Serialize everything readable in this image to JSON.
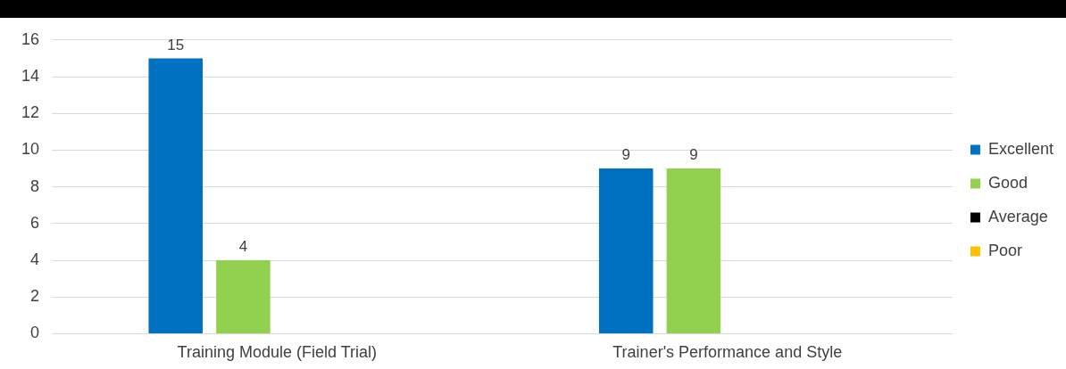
{
  "chart_data": {
    "type": "bar",
    "categories": [
      "Training Module (Field Trial)",
      "Trainer's Performance and Style"
    ],
    "series": [
      {
        "name": "Excellent",
        "color": "#0070c0",
        "values": [
          15,
          9
        ]
      },
      {
        "name": "Good",
        "color": "#92d050",
        "values": [
          4,
          9
        ]
      },
      {
        "name": "Average",
        "color": "#000000",
        "values": [
          null,
          null
        ]
      },
      {
        "name": "Poor",
        "color": "#ffc000",
        "values": [
          null,
          null
        ]
      }
    ],
    "ylim": [
      0,
      16
    ],
    "yticks": [
      0,
      2,
      4,
      6,
      8,
      10,
      12,
      14,
      16
    ],
    "grid": "y",
    "legend": "right",
    "data_labels": true
  }
}
